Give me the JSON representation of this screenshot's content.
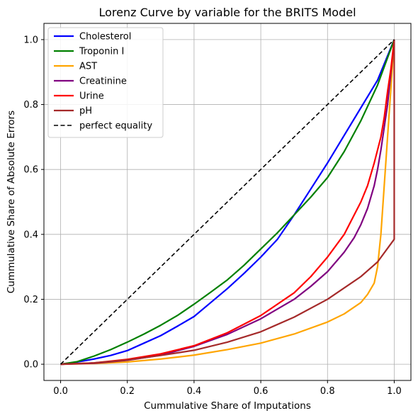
{
  "chart_data": {
    "type": "line",
    "title": "Lorenz Curve by variable for the BRITS Model",
    "xlabel": "Cummulative Share of Imputations",
    "ylabel": "Cummulative Share of Absolute Errors",
    "xlim": [
      -0.05,
      1.05
    ],
    "ylim": [
      -0.05,
      1.05
    ],
    "xticks": [
      0.0,
      0.2,
      0.4,
      0.6,
      0.8,
      1.0
    ],
    "yticks": [
      0.0,
      0.2,
      0.4,
      0.6,
      0.8,
      1.0
    ],
    "xtick_labels": [
      "0.0",
      "0.2",
      "0.4",
      "0.6",
      "0.8",
      "1.0"
    ],
    "ytick_labels": [
      "0.0",
      "0.2",
      "0.4",
      "0.6",
      "0.8",
      "1.0"
    ],
    "grid": true,
    "legend_position": "top-left",
    "series": [
      {
        "name": "Cholesterol",
        "color": "#0000ff",
        "dashed": false,
        "x": [
          0,
          0.05,
          0.1,
          0.15,
          0.2,
          0.25,
          0.3,
          0.35,
          0.4,
          0.45,
          0.5,
          0.55,
          0.6,
          0.65,
          0.7,
          0.75,
          0.8,
          0.85,
          0.9,
          0.95,
          1.0
        ],
        "y": [
          0,
          0.007,
          0.016,
          0.027,
          0.042,
          0.065,
          0.088,
          0.117,
          0.147,
          0.19,
          0.233,
          0.28,
          0.33,
          0.385,
          0.46,
          0.54,
          0.62,
          0.705,
          0.79,
          0.875,
          1.0
        ]
      },
      {
        "name": "Troponin I",
        "color": "#008000",
        "dashed": false,
        "x": [
          0,
          0.05,
          0.1,
          0.15,
          0.2,
          0.25,
          0.3,
          0.35,
          0.4,
          0.45,
          0.5,
          0.55,
          0.6,
          0.65,
          0.7,
          0.75,
          0.8,
          0.85,
          0.9,
          0.95,
          1.0
        ],
        "y": [
          0,
          0.008,
          0.025,
          0.045,
          0.068,
          0.093,
          0.12,
          0.15,
          0.185,
          0.222,
          0.26,
          0.305,
          0.355,
          0.405,
          0.46,
          0.515,
          0.575,
          0.655,
          0.75,
          0.86,
          1.0
        ]
      },
      {
        "name": "AST",
        "color": "#ffa500",
        "dashed": false,
        "x": [
          0,
          0.1,
          0.2,
          0.3,
          0.4,
          0.5,
          0.6,
          0.7,
          0.8,
          0.85,
          0.9,
          0.92,
          0.94,
          0.95,
          0.96,
          0.97,
          0.98,
          0.99,
          1.0
        ],
        "y": [
          0,
          0.002,
          0.007,
          0.016,
          0.028,
          0.045,
          0.065,
          0.093,
          0.13,
          0.155,
          0.19,
          0.215,
          0.25,
          0.3,
          0.4,
          0.55,
          0.7,
          0.85,
          1.0
        ]
      },
      {
        "name": "Creatinine",
        "color": "#800080",
        "dashed": false,
        "x": [
          0,
          0.1,
          0.2,
          0.3,
          0.4,
          0.5,
          0.6,
          0.7,
          0.75,
          0.8,
          0.85,
          0.88,
          0.9,
          0.92,
          0.94,
          0.95,
          0.96,
          0.97,
          0.98,
          0.99,
          1.0
        ],
        "y": [
          0,
          0.003,
          0.012,
          0.028,
          0.055,
          0.092,
          0.14,
          0.2,
          0.24,
          0.285,
          0.345,
          0.39,
          0.43,
          0.48,
          0.55,
          0.6,
          0.66,
          0.73,
          0.8,
          0.9,
          1.0
        ]
      },
      {
        "name": "Urine",
        "color": "#ff0000",
        "dashed": false,
        "x": [
          0,
          0.1,
          0.2,
          0.3,
          0.4,
          0.5,
          0.6,
          0.7,
          0.75,
          0.8,
          0.85,
          0.9,
          0.92,
          0.94,
          0.96,
          0.97,
          0.98,
          0.99,
          1.0
        ],
        "y": [
          0,
          0.004,
          0.015,
          0.032,
          0.057,
          0.097,
          0.15,
          0.22,
          0.27,
          0.33,
          0.4,
          0.5,
          0.55,
          0.62,
          0.7,
          0.76,
          0.84,
          0.91,
          1.0
        ]
      },
      {
        "name": "pH",
        "color": "#a52a2a",
        "dashed": false,
        "x": [
          0,
          0.1,
          0.2,
          0.3,
          0.4,
          0.5,
          0.6,
          0.7,
          0.8,
          0.9,
          0.95,
          1.0,
          1.0
        ],
        "y": [
          0,
          0.004,
          0.013,
          0.027,
          0.043,
          0.068,
          0.1,
          0.145,
          0.2,
          0.27,
          0.315,
          0.385,
          1.0
        ]
      },
      {
        "name": "perfect equality",
        "color": "#000000",
        "dashed": true,
        "x": [
          0,
          1
        ],
        "y": [
          0,
          1
        ]
      }
    ]
  }
}
